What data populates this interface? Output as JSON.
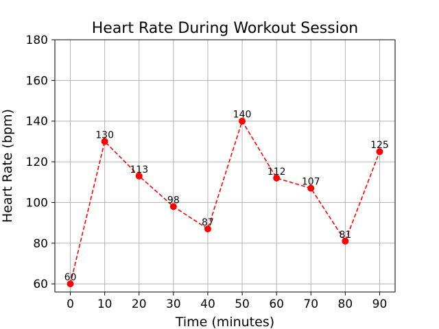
{
  "chart_data": {
    "type": "line",
    "title": "Heart Rate During Workout Session",
    "xlabel": "Time (minutes)",
    "ylabel": "Heart Rate (bpm)",
    "x": [
      0,
      10,
      20,
      30,
      40,
      50,
      60,
      70,
      80,
      90
    ],
    "series": [
      {
        "values": [
          60,
          130,
          113,
          98,
          87,
          140,
          112,
          107,
          81,
          125
        ],
        "color": "#ff0000",
        "line_style": "dashed",
        "marker": "circle"
      }
    ],
    "data_labels": [
      "60",
      "130",
      "113",
      "98",
      "87",
      "140",
      "112",
      "107",
      "81",
      "125"
    ],
    "xticks": [
      "0",
      "10",
      "20",
      "30",
      "40",
      "50",
      "60",
      "70",
      "80",
      "90"
    ],
    "yticks": [
      "60",
      "80",
      "100",
      "120",
      "140",
      "160",
      "180"
    ],
    "ytick_values": [
      60,
      80,
      100,
      120,
      140,
      160,
      180
    ],
    "xlim": [
      -4.5,
      94.5
    ],
    "ylim": [
      56,
      180
    ],
    "grid": true,
    "grid_color": "#b0b0b0"
  }
}
